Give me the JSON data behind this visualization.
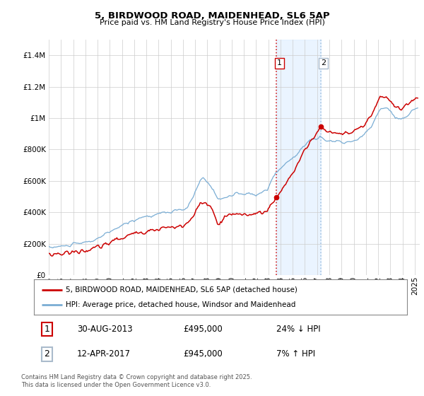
{
  "title1": "5, BIRDWOOD ROAD, MAIDENHEAD, SL6 5AP",
  "title2": "Price paid vs. HM Land Registry's House Price Index (HPI)",
  "legend1": "5, BIRDWOOD ROAD, MAIDENHEAD, SL6 5AP (detached house)",
  "legend2": "HPI: Average price, detached house, Windsor and Maidenhead",
  "marker1_date": "30-AUG-2013",
  "marker1_price": 495000,
  "marker1_note": "24% ↓ HPI",
  "marker2_date": "12-APR-2017",
  "marker2_price": 945000,
  "marker2_note": "7% ↑ HPI",
  "footer": "Contains HM Land Registry data © Crown copyright and database right 2025.\nThis data is licensed under the Open Government Licence v3.0.",
  "red_color": "#cc0000",
  "blue_color": "#7aadd4",
  "shade_color": "#ddeeff",
  "box1_color": "#cc0000",
  "box2_color": "#aabbcc",
  "ylim_max": 1500000,
  "yticks": [
    0,
    200000,
    400000,
    600000,
    800000,
    1000000,
    1200000,
    1400000
  ]
}
